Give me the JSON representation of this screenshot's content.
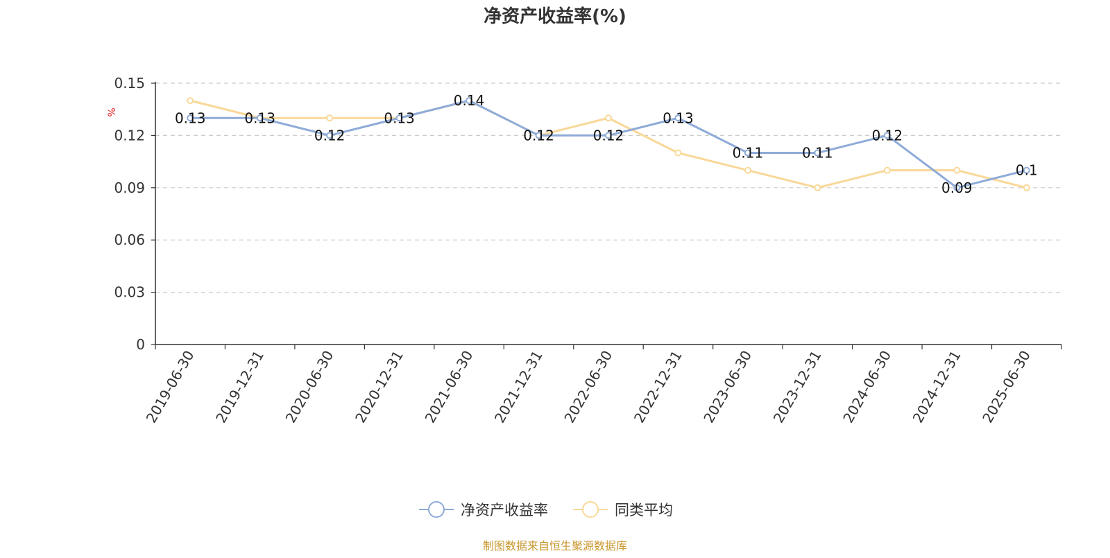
{
  "chart_data": {
    "type": "line",
    "title": "净资产收益率(%)",
    "ylabel": "%",
    "ylim": [
      0,
      0.15
    ],
    "yticks": [
      "0",
      "0.03",
      "0.06",
      "0.09",
      "0.12",
      "0.15"
    ],
    "grid": true,
    "legend_position": "bottom",
    "categories": [
      "2019-06-30",
      "2019-12-31",
      "2020-06-30",
      "2020-12-31",
      "2021-06-30",
      "2021-12-31",
      "2022-06-30",
      "2022-12-31",
      "2023-06-30",
      "2023-12-31",
      "2024-06-30",
      "2024-12-31",
      "2025-06-30"
    ],
    "series": [
      {
        "name": "净资产收益率",
        "color": "#8eabd8",
        "values": [
          0.13,
          0.13,
          0.12,
          0.13,
          0.14,
          0.12,
          0.12,
          0.13,
          0.11,
          0.11,
          0.12,
          0.09,
          0.1
        ],
        "labels": [
          "0.13",
          "0.13",
          "0.12",
          "0.13",
          "0.14",
          "0.12",
          "0.12",
          "0.13",
          "0.11",
          "0.11",
          "0.12",
          "0.09",
          "0.1"
        ]
      },
      {
        "name": "同类平均",
        "color": "#f9d898",
        "values": [
          0.14,
          0.13,
          0.13,
          0.13,
          0.14,
          0.12,
          0.13,
          0.11,
          0.1,
          0.09,
          0.1,
          0.1,
          0.09
        ]
      }
    ],
    "source": "制图数据来自恒生聚源数据库"
  }
}
